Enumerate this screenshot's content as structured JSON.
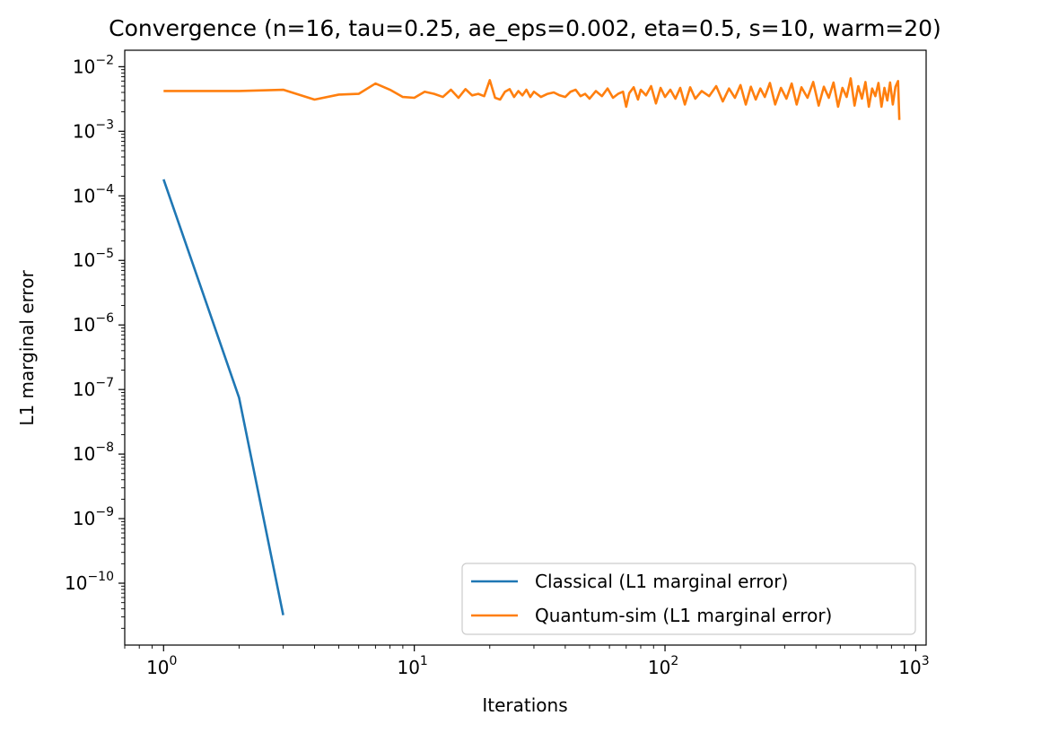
{
  "chart_data": {
    "type": "line",
    "title": "Convergence (n=16, tau=0.25, ae_eps=0.002, eta=0.5, s=10, warm=20)",
    "xlabel": "Iterations",
    "ylabel": "L1 marginal error",
    "xscale": "log",
    "yscale": "log",
    "xlim": [
      0.7,
      1100
    ],
    "ylim": [
      1.1e-11,
      0.018
    ],
    "grid": false,
    "legend_position": "lower right",
    "x_ticks": [
      {
        "value": 1,
        "base": "10",
        "exp": "0"
      },
      {
        "value": 10,
        "base": "10",
        "exp": "1"
      },
      {
        "value": 100,
        "base": "10",
        "exp": "2"
      },
      {
        "value": 1000,
        "base": "10",
        "exp": "3"
      }
    ],
    "y_ticks": [
      {
        "value": 1e-10,
        "base": "10",
        "exp": "−10"
      },
      {
        "value": 1e-09,
        "base": "10",
        "exp": "−9"
      },
      {
        "value": 1e-08,
        "base": "10",
        "exp": "−8"
      },
      {
        "value": 1e-07,
        "base": "10",
        "exp": "−7"
      },
      {
        "value": 1e-06,
        "base": "10",
        "exp": "−6"
      },
      {
        "value": 1e-05,
        "base": "10",
        "exp": "−5"
      },
      {
        "value": 0.0001,
        "base": "10",
        "exp": "−4"
      },
      {
        "value": 0.001,
        "base": "10",
        "exp": "−3"
      },
      {
        "value": 0.01,
        "base": "10",
        "exp": "−2"
      }
    ],
    "series": [
      {
        "name": "Classical (L1 marginal error)",
        "color": "#1f77b4",
        "x": [
          1,
          2,
          3
        ],
        "y": [
          0.00018,
          7.5e-08,
          3.2e-11
        ]
      },
      {
        "name": "Quantum-sim (L1 marginal error)",
        "color": "#ff7f0e",
        "x": [
          1,
          2,
          3,
          4,
          5,
          6,
          7,
          8,
          9,
          10,
          11,
          12,
          13,
          14,
          15,
          16,
          17,
          18,
          19,
          20,
          21,
          22,
          23,
          24,
          25,
          26,
          27,
          28,
          29,
          30,
          32,
          34,
          36,
          38,
          40,
          42,
          44,
          46,
          48,
          50,
          53,
          56,
          59,
          62,
          65,
          68,
          70,
          72,
          75,
          78,
          80,
          84,
          88,
          92,
          96,
          100,
          105,
          110,
          115,
          120,
          126,
          132,
          140,
          150,
          160,
          170,
          180,
          190,
          200,
          210,
          220,
          230,
          240,
          250,
          262,
          275,
          290,
          305,
          320,
          335,
          350,
          370,
          390,
          410,
          430,
          450,
          470,
          490,
          510,
          530,
          550,
          570,
          590,
          610,
          630,
          650,
          670,
          690,
          710,
          730,
          750,
          770,
          790,
          810,
          830,
          850,
          860
        ],
        "y": [
          0.0042,
          0.0042,
          0.0044,
          0.0031,
          0.0037,
          0.0038,
          0.0055,
          0.0044,
          0.0034,
          0.0033,
          0.0041,
          0.0038,
          0.0034,
          0.0044,
          0.0033,
          0.0045,
          0.0036,
          0.0038,
          0.0035,
          0.0062,
          0.0033,
          0.0031,
          0.0041,
          0.0045,
          0.0034,
          0.0042,
          0.0036,
          0.0044,
          0.0034,
          0.0041,
          0.0034,
          0.0038,
          0.004,
          0.0036,
          0.0034,
          0.0041,
          0.0044,
          0.0035,
          0.0038,
          0.0032,
          0.0042,
          0.0035,
          0.0046,
          0.0033,
          0.0038,
          0.0041,
          0.0024,
          0.0039,
          0.0048,
          0.0031,
          0.0044,
          0.0036,
          0.005,
          0.0027,
          0.0047,
          0.0034,
          0.0044,
          0.0032,
          0.0047,
          0.0026,
          0.0048,
          0.0032,
          0.0042,
          0.0035,
          0.005,
          0.0029,
          0.0046,
          0.0033,
          0.0052,
          0.0026,
          0.0049,
          0.0031,
          0.0046,
          0.0034,
          0.0056,
          0.0026,
          0.0047,
          0.0032,
          0.0055,
          0.0026,
          0.0048,
          0.0033,
          0.0058,
          0.0025,
          0.0049,
          0.0033,
          0.0057,
          0.0024,
          0.0047,
          0.0034,
          0.0066,
          0.0025,
          0.005,
          0.0032,
          0.0058,
          0.0024,
          0.0046,
          0.0035,
          0.0056,
          0.0024,
          0.0047,
          0.003,
          0.0057,
          0.0026,
          0.0049,
          0.006,
          0.0015
        ]
      }
    ]
  }
}
